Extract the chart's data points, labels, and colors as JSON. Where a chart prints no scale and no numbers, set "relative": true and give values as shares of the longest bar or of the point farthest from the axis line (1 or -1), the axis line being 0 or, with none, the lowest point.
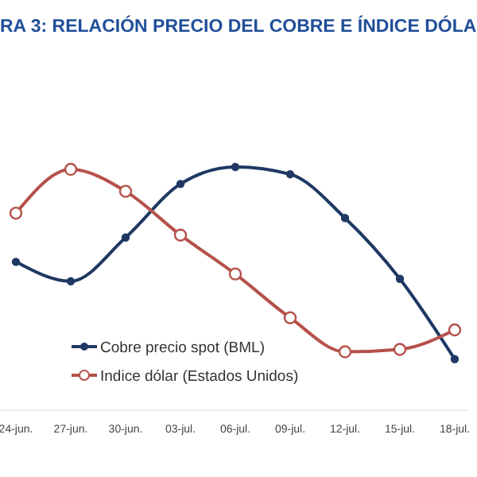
{
  "chart_data": {
    "type": "line",
    "title": "RA 3: RELACIÓN PRECIO DEL COBRE E ÍNDICE DÓLA",
    "relative": true,
    "categories": [
      "24-jun.",
      "27-jun.",
      "30-jun.",
      "03-jul.",
      "06-jul.",
      "09-jul.",
      "12-jul.",
      "15-jul.",
      "18-jul."
    ],
    "series": [
      {
        "name": "Cobre precio spot (BML)",
        "color": "#1f3864",
        "values": [
          0.61,
          0.53,
          0.71,
          0.93,
          1,
          0.97,
          0.79,
          0.54,
          0.21
        ]
      },
      {
        "name": "Indice dólar (Estados Unidos)",
        "color": "#b5514a",
        "values": [
          0.81,
          0.99,
          0.9,
          0.72,
          0.56,
          0.38,
          0.24,
          0.25,
          0.33
        ]
      }
    ],
    "marker": "circle",
    "legend": "bottom left",
    "grid": false
  }
}
